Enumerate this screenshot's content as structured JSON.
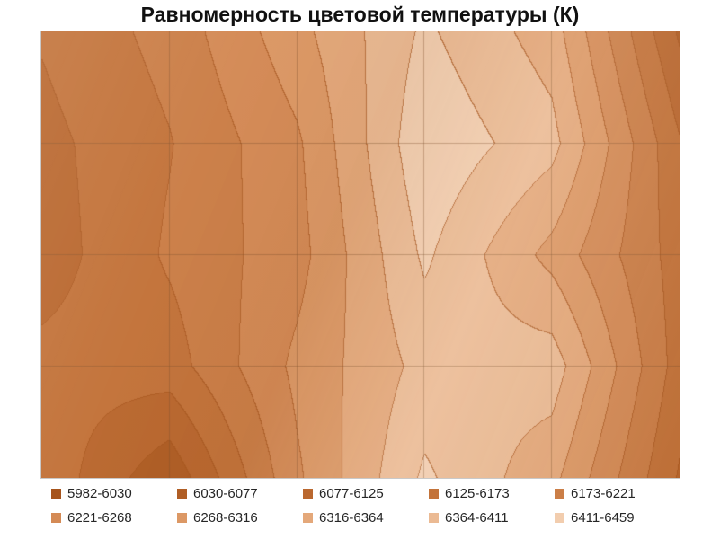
{
  "title": "Равномерность цветовой температуры (К)",
  "chart_data": {
    "type": "heatmap",
    "subtype": "filled-contour-surface",
    "title": "Равномерность цветовой температуры (К)",
    "zmin": 5982,
    "zmax": 6459,
    "legend_position": "bottom",
    "grid": true,
    "grid_cells": {
      "columns": 5,
      "rows": 4
    },
    "bands": [
      {
        "label": "5982-6030",
        "color": "#A6541C"
      },
      {
        "label": "6030-6077",
        "color": "#B05E25"
      },
      {
        "label": "6077-6125",
        "color": "#BA682F"
      },
      {
        "label": "6125-6173",
        "color": "#C3733A"
      },
      {
        "label": "6173-6221",
        "color": "#CB7E47"
      },
      {
        "label": "6221-6268",
        "color": "#D48A55"
      },
      {
        "label": "6268-6316",
        "color": "#DC9865"
      },
      {
        "label": "6316-6364",
        "color": "#E4A87A"
      },
      {
        "label": "6364-6411",
        "color": "#EBBA93"
      },
      {
        "label": "6411-6459",
        "color": "#F2CDAE"
      }
    ],
    "matrix": [
      [
        6130,
        6190,
        6300,
        6420,
        6340,
        6070
      ],
      [
        6110,
        6170,
        6260,
        6450,
        6380,
        6130
      ],
      [
        6100,
        6180,
        6250,
        6420,
        6300,
        6150
      ],
      [
        6140,
        6150,
        6280,
        6380,
        6390,
        6150
      ],
      [
        6160,
        6040,
        6260,
        6420,
        6330,
        6120
      ]
    ],
    "contour_line_color": "#A9571F",
    "gridline_color": "rgba(125,82,44,0.38)"
  }
}
